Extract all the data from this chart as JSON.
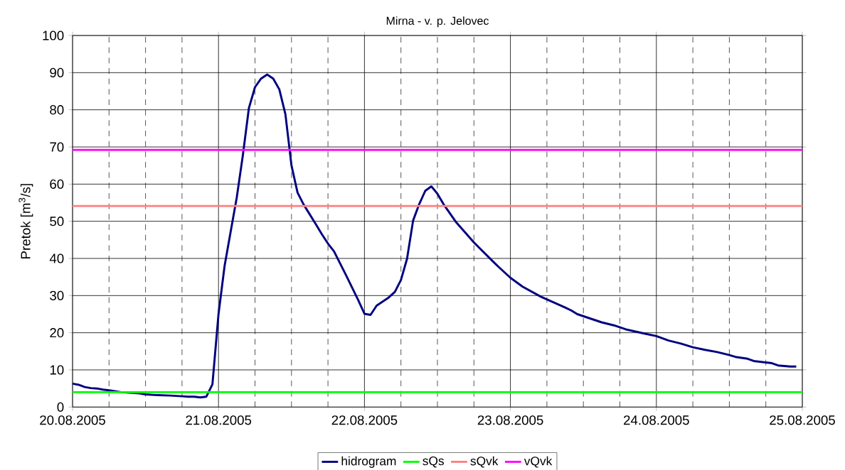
{
  "chart_data": {
    "type": "line",
    "title": "Mirna - v. p. Jelovec",
    "ylabel": "Pretok [m$^{3}$/s]",
    "xlim": [
      "2005-08-20T00:00",
      "2005-08-25T00:00"
    ],
    "xticks": [
      {
        "value": "2005-08-20",
        "label": "20.08.2005"
      },
      {
        "value": "2005-08-20T06:00",
        "label": null
      },
      {
        "value": "2005-08-20T12:00",
        "label": null
      },
      {
        "value": "2005-08-20T18:00",
        "label": null
      },
      {
        "value": "2005-08-21",
        "label": "21.08.2005"
      },
      {
        "value": "2005-08-21T06:00",
        "label": null
      },
      {
        "value": "2005-08-21T12:00",
        "label": null
      },
      {
        "value": "2005-08-21T18:00",
        "label": null
      },
      {
        "value": "2005-08-22",
        "label": "22.08.2005"
      },
      {
        "value": "2005-08-22T06:00",
        "label": null
      },
      {
        "value": "2005-08-22T12:00",
        "label": null
      },
      {
        "value": "2005-08-22T18:00",
        "label": null
      },
      {
        "value": "2005-08-23",
        "label": "23.08.2005"
      },
      {
        "value": "2005-08-23T06:00",
        "label": null
      },
      {
        "value": "2005-08-23T12:00",
        "label": null
      },
      {
        "value": "2005-08-23T18:00",
        "label": null
      },
      {
        "value": "2005-08-24",
        "label": "24.08.2005"
      },
      {
        "value": "2005-08-24T06:00",
        "label": null
      },
      {
        "value": "2005-08-24T12:00",
        "label": null
      },
      {
        "value": "2005-08-24T18:00",
        "label": null
      },
      {
        "value": "2005-08-25",
        "label": "25.08.2005"
      }
    ],
    "ylim": [
      0,
      100
    ],
    "yticks": [
      0,
      10,
      20,
      30,
      40,
      50,
      60,
      70,
      80,
      90,
      100
    ],
    "grid": true,
    "legend": "bottom",
    "line_style": "solid",
    "marker": "none",
    "series": [
      {
        "name": "hidrogram",
        "color": "#000080",
        "x": [
          "2005-08-20T00:00",
          "2005-08-20T01:00",
          "2005-08-20T02:00",
          "2005-08-20T03:00",
          "2005-08-20T04:00",
          "2005-08-20T05:00",
          "2005-08-20T06:00",
          "2005-08-20T08:00",
          "2005-08-20T11:00",
          "2005-08-20T12:00",
          "2005-08-20T14:00",
          "2005-08-20T16:00",
          "2005-08-20T18:00",
          "2005-08-20T19:00",
          "2005-08-20T20:00",
          "2005-08-20T21:00",
          "2005-08-20T22:00",
          "2005-08-20T23:00",
          "2005-08-21T00:00",
          "2005-08-21T01:00",
          "2005-08-21T02:00",
          "2005-08-21T03:00",
          "2005-08-21T04:00",
          "2005-08-21T05:00",
          "2005-08-21T06:00",
          "2005-08-21T07:00",
          "2005-08-21T08:00",
          "2005-08-21T09:00",
          "2005-08-21T10:00",
          "2005-08-21T11:00",
          "2005-08-21T12:00",
          "2005-08-21T13:00",
          "2005-08-21T14:00",
          "2005-08-21T16:00",
          "2005-08-21T17:00",
          "2005-08-21T18:00",
          "2005-08-21T19:00",
          "2005-08-21T21:00",
          "2005-08-21T23:00",
          "2005-08-22T00:00",
          "2005-08-22T01:00",
          "2005-08-22T02:00",
          "2005-08-22T04:00",
          "2005-08-22T05:00",
          "2005-08-22T06:00",
          "2005-08-22T07:00",
          "2005-08-22T08:00",
          "2005-08-22T09:00",
          "2005-08-22T10:00",
          "2005-08-22T11:00",
          "2005-08-22T12:00",
          "2005-08-22T13:00",
          "2005-08-22T15:00",
          "2005-08-22T18:00",
          "2005-08-22T21:00",
          "2005-08-22T22:00",
          "2005-08-23T00:00",
          "2005-08-23T02:00",
          "2005-08-23T05:00",
          "2005-08-23T09:00",
          "2005-08-23T10:00",
          "2005-08-23T11:00",
          "2005-08-23T15:00",
          "2005-08-23T17:00",
          "2005-08-23T19:00",
          "2005-08-23T22:00",
          "2005-08-24T00:00",
          "2005-08-24T02:00",
          "2005-08-24T04:00",
          "2005-08-24T06:00",
          "2005-08-24T08:00",
          "2005-08-24T10:00",
          "2005-08-24T12:00",
          "2005-08-24T13:00",
          "2005-08-24T15:00",
          "2005-08-24T16:00",
          "2005-08-24T19:00",
          "2005-08-24T20:00",
          "2005-08-24T22:00",
          "2005-08-24T23:00"
        ],
        "values": [
          6.3,
          6.0,
          5.4,
          5.1,
          5.0,
          4.7,
          4.5,
          4.0,
          3.7,
          3.4,
          3.2,
          3.1,
          2.9,
          2.8,
          2.8,
          2.6,
          2.8,
          6.1,
          25.0,
          38,
          47.2,
          56.4,
          67.7,
          80.5,
          86.1,
          88.4,
          89.5,
          88.4,
          85.5,
          78.8,
          65,
          57.7,
          54.5,
          49.2,
          46.5,
          44,
          41.9,
          35.4,
          28.7,
          25.1,
          24.8,
          27.3,
          29.5,
          31.0,
          34.2,
          39.9,
          50.2,
          54.6,
          58.2,
          59.4,
          57.4,
          54.6,
          49.9,
          44.3,
          39.4,
          37.8,
          34.8,
          32.4,
          29.7,
          26.8,
          26.0,
          25.0,
          22.8,
          22.0,
          20.9,
          19.8,
          19.1,
          17.9,
          17.1,
          16.1,
          15.4,
          14.8,
          14.0,
          13.5,
          13.0,
          12.4,
          11.8,
          11.2,
          10.9,
          10.9
        ]
      },
      {
        "name": "sQs",
        "color": "#00ff00",
        "x": [
          "2005-08-20T00:00",
          "2005-08-25T00:00"
        ],
        "values": [
          4.0,
          4.0
        ]
      },
      {
        "name": "sQvk",
        "color": "#ff8080",
        "x": [
          "2005-08-20T00:00",
          "2005-08-25T00:00"
        ],
        "values": [
          54.1,
          54.1
        ]
      },
      {
        "name": "vQvk",
        "color": "#ff00ff",
        "x": [
          "2005-08-20T00:00",
          "2005-08-25T00:00"
        ],
        "values": [
          69.2,
          69.2
        ]
      }
    ]
  }
}
